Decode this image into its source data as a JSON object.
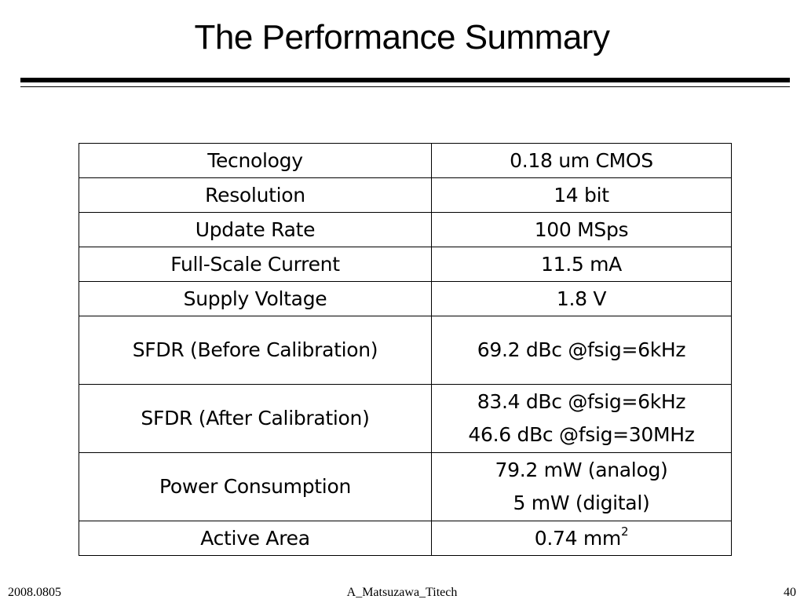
{
  "slide": {
    "title": "The Performance Summary"
  },
  "table": {
    "rows": [
      {
        "label": "Tecnology",
        "values": [
          "0.18 um CMOS"
        ]
      },
      {
        "label": "Resolution",
        "values": [
          "14 bit"
        ]
      },
      {
        "label": "Update Rate",
        "values": [
          "100 MSps"
        ]
      },
      {
        "label": "Full-Scale Current",
        "values": [
          "11.5 mA"
        ]
      },
      {
        "label": "Supply Voltage",
        "values": [
          "1.8 V"
        ]
      },
      {
        "label": "SFDR (Before Calibration)",
        "values": [
          "69.2 dBc @fsig=6kHz"
        ]
      },
      {
        "label": "SFDR (After Calibration)",
        "values": [
          "83.4 dBc @fsig=6kHz",
          "46.6 dBc @fsig=30MHz"
        ]
      },
      {
        "label": "Power Consumption",
        "values": [
          "79.2 mW (analog)",
          "5 mW (digital)"
        ]
      },
      {
        "label": "Active Area",
        "values": [
          "0.74 mm"
        ],
        "superscript": "2"
      }
    ]
  },
  "footer": {
    "date": "2008.0805",
    "author": "A_Matsuzawa_Titech",
    "page_number": "40"
  }
}
